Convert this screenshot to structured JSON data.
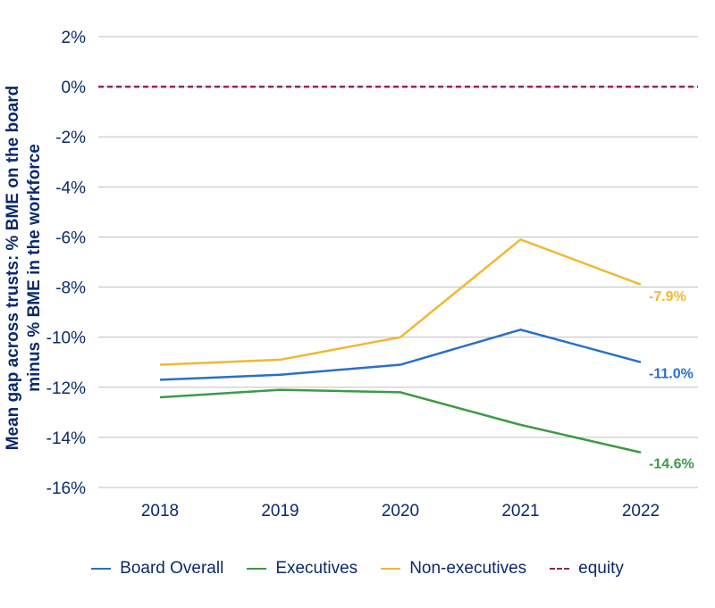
{
  "chart_data": {
    "type": "line",
    "ylabel_line1": "Mean gap across trusts: % BME on the board",
    "ylabel_line2": "minus % BME in the workforce",
    "x": [
      "2018",
      "2019",
      "2020",
      "2021",
      "2022"
    ],
    "ylim": [
      -16,
      2
    ],
    "yticks": [
      "2%",
      "0%",
      "-2%",
      "-4%",
      "-6%",
      "-8%",
      "-10%",
      "-12%",
      "-14%",
      "-16%"
    ],
    "grid": true,
    "legend_position": "bottom",
    "series": [
      {
        "name": "Board Overall",
        "color": "#2a6fc6",
        "values": [
          -11.7,
          -11.5,
          -11.1,
          -9.7,
          -11.0
        ],
        "end_label": "-11.0%"
      },
      {
        "name": "Executives",
        "color": "#3e9a45",
        "values": [
          -12.4,
          -12.1,
          -12.2,
          -13.5,
          -14.6
        ],
        "end_label": "-14.6%"
      },
      {
        "name": "Non-executives",
        "color": "#f0b832",
        "values": [
          -11.1,
          -10.9,
          -10.0,
          -6.1,
          -7.9
        ],
        "end_label": "-7.9%"
      },
      {
        "name": "equity",
        "color": "#8b2a5e",
        "values": [
          0,
          0,
          0,
          0,
          0
        ],
        "dashed": true
      }
    ]
  }
}
